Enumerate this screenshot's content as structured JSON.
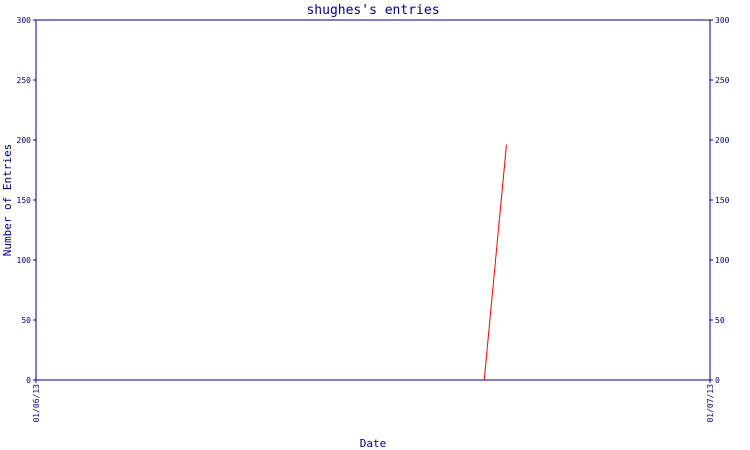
{
  "chart_data": {
    "type": "line",
    "title": "shughes's entries",
    "xlabel": "Date",
    "ylabel": "Number of Entries",
    "ylim": [
      0,
      300
    ],
    "y_ticks": [
      0,
      50,
      100,
      150,
      200,
      250,
      300
    ],
    "y_tick_labels": [
      "0",
      "50",
      "100",
      "150",
      "200",
      "250",
      "300"
    ],
    "x_range": [
      "01/06/13",
      "01/07/13"
    ],
    "x_tick_labels": [
      "01/06/13",
      "01/07/13"
    ],
    "grid": false,
    "right_axis_mirrored": true,
    "series": [
      {
        "color": "#ff0000",
        "points": [
          {
            "x": 0.665,
            "y": 0
          },
          {
            "x": 0.698,
            "y": 196
          }
        ]
      }
    ],
    "colors": {
      "axis": "#000080",
      "text": "#000080",
      "line": "#ff0000",
      "background": "#ffffff"
    }
  }
}
